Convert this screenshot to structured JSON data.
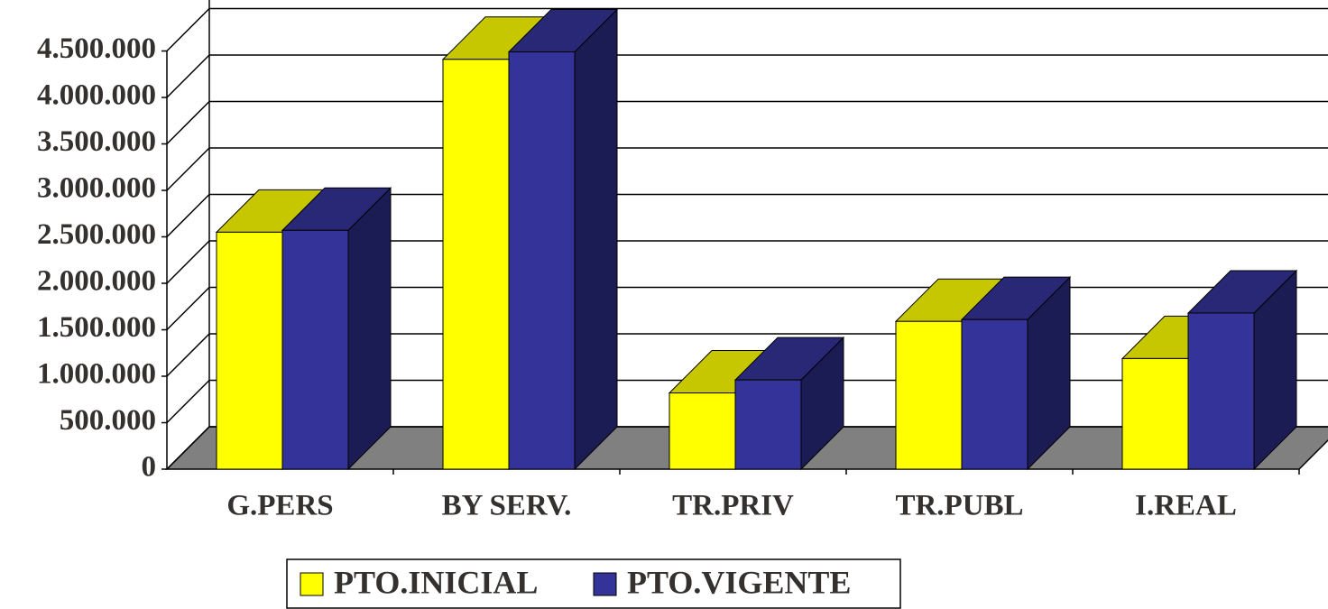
{
  "chart_data": {
    "type": "bar3d",
    "categories": [
      "G.PERS",
      "BY SERV.",
      "TR.PRIV",
      "TR.PUBL",
      "I.REAL"
    ],
    "series": [
      {
        "name": "PTO.INICIAL",
        "color": "#ffff00",
        "values": [
          2550000,
          4410000,
          820000,
          1590000,
          1190000
        ]
      },
      {
        "name": "PTO.VIGENTE",
        "color": "#333399",
        "values": [
          2570000,
          4490000,
          960000,
          1610000,
          1680000
        ]
      }
    ],
    "ylim": [
      0,
      5000000
    ],
    "yticks": [
      {
        "value": 0,
        "label": "0"
      },
      {
        "value": 500000,
        "label": "500.000"
      },
      {
        "value": 1000000,
        "label": "1.000.000"
      },
      {
        "value": 1500000,
        "label": "1.500.000"
      },
      {
        "value": 2000000,
        "label": "2.000.000"
      },
      {
        "value": 2500000,
        "label": "2.500.000"
      },
      {
        "value": 3000000,
        "label": "3.000.000"
      },
      {
        "value": 3500000,
        "label": "3.500.000"
      },
      {
        "value": 4000000,
        "label": "4.000.000"
      },
      {
        "value": 4500000,
        "label": "4.500.000"
      }
    ],
    "grid": true,
    "legend": "bottom"
  }
}
